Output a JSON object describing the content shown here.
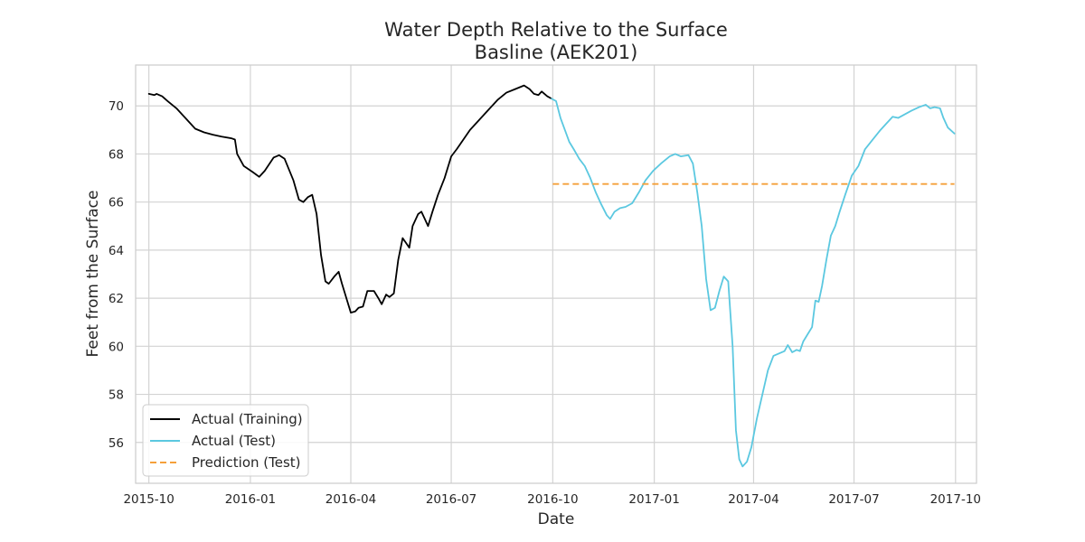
{
  "chart_data": {
    "type": "line",
    "title": "Water Depth Relative to the Surface",
    "subtitle": "Basline (AEK201)",
    "xlabel": "Date",
    "ylabel": "Feet from the Surface",
    "xlim": [
      "2015-09-19",
      "2017-10-20"
    ],
    "ylim": [
      54.3,
      71.7
    ],
    "x_ticks": [
      "2015-10-01",
      "2016-01-01",
      "2016-04-01",
      "2016-07-01",
      "2016-10-01",
      "2017-01-01",
      "2017-04-01",
      "2017-07-01",
      "2017-10-01"
    ],
    "x_tick_labels": [
      "2015-10",
      "2016-01",
      "2016-04",
      "2016-07",
      "2016-10",
      "2017-01",
      "2017-04",
      "2017-07",
      "2017-10"
    ],
    "y_ticks": [
      56,
      58,
      60,
      62,
      64,
      66,
      68,
      70
    ],
    "grid": true,
    "legend_position": "lower-left",
    "series": [
      {
        "name": "Actual (Training)",
        "color": "#000000",
        "style": "solid",
        "points": [
          [
            "2015-10-01",
            70.5
          ],
          [
            "2015-10-06",
            70.45
          ],
          [
            "2015-10-08",
            70.5
          ],
          [
            "2015-10-13",
            70.4
          ],
          [
            "2015-10-18",
            70.2
          ],
          [
            "2015-10-26",
            69.9
          ],
          [
            "2015-11-03",
            69.5
          ],
          [
            "2015-11-12",
            69.05
          ],
          [
            "2015-11-20",
            68.9
          ],
          [
            "2015-11-28",
            68.8
          ],
          [
            "2015-12-06",
            68.72
          ],
          [
            "2015-12-15",
            68.65
          ],
          [
            "2015-12-18",
            68.6
          ],
          [
            "2015-12-20",
            68.0
          ],
          [
            "2015-12-26",
            67.5
          ],
          [
            "2016-01-03",
            67.25
          ],
          [
            "2016-01-09",
            67.05
          ],
          [
            "2016-01-14",
            67.3
          ],
          [
            "2016-01-22",
            67.85
          ],
          [
            "2016-01-27",
            67.95
          ],
          [
            "2016-02-01",
            67.8
          ],
          [
            "2016-02-09",
            66.9
          ],
          [
            "2016-02-14",
            66.1
          ],
          [
            "2016-02-18",
            66.0
          ],
          [
            "2016-02-22",
            66.2
          ],
          [
            "2016-02-26",
            66.3
          ],
          [
            "2016-03-01",
            65.5
          ],
          [
            "2016-03-05",
            63.8
          ],
          [
            "2016-03-09",
            62.7
          ],
          [
            "2016-03-12",
            62.6
          ],
          [
            "2016-03-17",
            62.9
          ],
          [
            "2016-03-21",
            63.1
          ],
          [
            "2016-03-24",
            62.6
          ],
          [
            "2016-03-28",
            62.0
          ],
          [
            "2016-04-01",
            61.4
          ],
          [
            "2016-04-05",
            61.45
          ],
          [
            "2016-04-08",
            61.6
          ],
          [
            "2016-04-12",
            61.65
          ],
          [
            "2016-04-16",
            62.3
          ],
          [
            "2016-04-22",
            62.3
          ],
          [
            "2016-04-26",
            62.0
          ],
          [
            "2016-04-29",
            61.75
          ],
          [
            "2016-05-03",
            62.15
          ],
          [
            "2016-05-06",
            62.05
          ],
          [
            "2016-05-10",
            62.2
          ],
          [
            "2016-05-14",
            63.6
          ],
          [
            "2016-05-18",
            64.5
          ],
          [
            "2016-05-21",
            64.3
          ],
          [
            "2016-05-24",
            64.1
          ],
          [
            "2016-05-27",
            65.0
          ],
          [
            "2016-06-01",
            65.5
          ],
          [
            "2016-06-04",
            65.6
          ],
          [
            "2016-06-07",
            65.3
          ],
          [
            "2016-06-10",
            65.0
          ],
          [
            "2016-06-14",
            65.6
          ],
          [
            "2016-06-19",
            66.3
          ],
          [
            "2016-06-25",
            67.0
          ],
          [
            "2016-07-01",
            67.9
          ],
          [
            "2016-07-06",
            68.2
          ],
          [
            "2016-07-12",
            68.6
          ],
          [
            "2016-07-18",
            69.0
          ],
          [
            "2016-07-24",
            69.3
          ],
          [
            "2016-07-30",
            69.6
          ],
          [
            "2016-08-05",
            69.9
          ],
          [
            "2016-08-12",
            70.25
          ],
          [
            "2016-08-20",
            70.55
          ],
          [
            "2016-08-28",
            70.7
          ],
          [
            "2016-09-05",
            70.85
          ],
          [
            "2016-09-10",
            70.7
          ],
          [
            "2016-09-14",
            70.5
          ],
          [
            "2016-09-18",
            70.45
          ],
          [
            "2016-09-21",
            70.6
          ],
          [
            "2016-09-26",
            70.4
          ],
          [
            "2016-09-30",
            70.3
          ]
        ]
      },
      {
        "name": "Actual (Test)",
        "color": "#5bc8e0",
        "style": "solid",
        "points": [
          [
            "2016-09-30",
            70.3
          ],
          [
            "2016-10-04",
            70.2
          ],
          [
            "2016-10-08",
            69.5
          ],
          [
            "2016-10-12",
            69.0
          ],
          [
            "2016-10-16",
            68.5
          ],
          [
            "2016-10-20",
            68.2
          ],
          [
            "2016-10-25",
            67.8
          ],
          [
            "2016-10-30",
            67.5
          ],
          [
            "2016-11-04",
            67.0
          ],
          [
            "2016-11-09",
            66.4
          ],
          [
            "2016-11-14",
            65.9
          ],
          [
            "2016-11-19",
            65.45
          ],
          [
            "2016-11-22",
            65.3
          ],
          [
            "2016-11-26",
            65.6
          ],
          [
            "2016-12-01",
            65.75
          ],
          [
            "2016-12-06",
            65.8
          ],
          [
            "2016-12-12",
            65.95
          ],
          [
            "2016-12-18",
            66.4
          ],
          [
            "2016-12-24",
            66.9
          ],
          [
            "2016-12-31",
            67.3
          ],
          [
            "2017-01-07",
            67.6
          ],
          [
            "2017-01-15",
            67.9
          ],
          [
            "2017-01-20",
            68.0
          ],
          [
            "2017-01-25",
            67.9
          ],
          [
            "2017-02-01",
            67.95
          ],
          [
            "2017-02-05",
            67.6
          ],
          [
            "2017-02-09",
            66.4
          ],
          [
            "2017-02-13",
            65.0
          ],
          [
            "2017-02-17",
            62.8
          ],
          [
            "2017-02-21",
            61.5
          ],
          [
            "2017-02-25",
            61.6
          ],
          [
            "2017-03-01",
            62.3
          ],
          [
            "2017-03-05",
            62.9
          ],
          [
            "2017-03-09",
            62.7
          ],
          [
            "2017-03-13",
            60.0
          ],
          [
            "2017-03-16",
            56.5
          ],
          [
            "2017-03-19",
            55.3
          ],
          [
            "2017-03-22",
            55.0
          ],
          [
            "2017-03-26",
            55.2
          ],
          [
            "2017-03-30",
            55.8
          ],
          [
            "2017-04-04",
            57.0
          ],
          [
            "2017-04-09",
            58.0
          ],
          [
            "2017-04-14",
            59.0
          ],
          [
            "2017-04-19",
            59.6
          ],
          [
            "2017-04-24",
            59.7
          ],
          [
            "2017-04-29",
            59.8
          ],
          [
            "2017-05-02",
            60.05
          ],
          [
            "2017-05-06",
            59.75
          ],
          [
            "2017-05-10",
            59.85
          ],
          [
            "2017-05-13",
            59.8
          ],
          [
            "2017-05-16",
            60.2
          ],
          [
            "2017-05-20",
            60.5
          ],
          [
            "2017-05-24",
            60.8
          ],
          [
            "2017-05-27",
            61.9
          ],
          [
            "2017-05-30",
            61.85
          ],
          [
            "2017-06-02",
            62.5
          ],
          [
            "2017-06-06",
            63.6
          ],
          [
            "2017-06-10",
            64.6
          ],
          [
            "2017-06-14",
            65.0
          ],
          [
            "2017-06-18",
            65.6
          ],
          [
            "2017-06-23",
            66.3
          ],
          [
            "2017-06-29",
            67.1
          ],
          [
            "2017-07-05",
            67.5
          ],
          [
            "2017-07-11",
            68.2
          ],
          [
            "2017-07-18",
            68.6
          ],
          [
            "2017-07-25",
            69.0
          ],
          [
            "2017-07-31",
            69.3
          ],
          [
            "2017-08-05",
            69.55
          ],
          [
            "2017-08-10",
            69.5
          ],
          [
            "2017-08-16",
            69.65
          ],
          [
            "2017-08-22",
            69.8
          ],
          [
            "2017-08-29",
            69.95
          ],
          [
            "2017-09-04",
            70.05
          ],
          [
            "2017-09-08",
            69.9
          ],
          [
            "2017-09-12",
            69.95
          ],
          [
            "2017-09-17",
            69.9
          ],
          [
            "2017-09-20",
            69.5
          ],
          [
            "2017-09-24",
            69.1
          ],
          [
            "2017-09-30",
            68.85
          ]
        ]
      },
      {
        "name": "Prediction (Test)",
        "color": "#f5a03a",
        "style": "dashed",
        "points": [
          [
            "2016-10-01",
            66.75
          ],
          [
            "2017-09-30",
            66.75
          ]
        ]
      }
    ]
  }
}
